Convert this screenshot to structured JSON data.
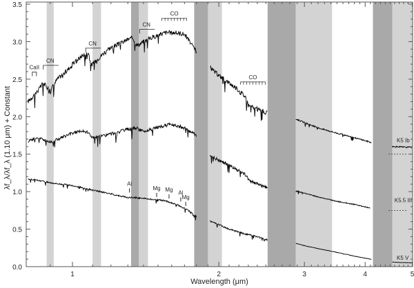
{
  "chart_data": {
    "type": "line",
    "title": "",
    "xlabel": "Wavelength (μm)",
    "ylabel": "λf_λ/λf_λ (1.10 μm) + Constant",
    "xscale": "log",
    "xlim": [
      0.8,
      5.0
    ],
    "ylim": [
      0.0,
      3.5
    ],
    "x_ticks": [
      {
        "value": 1,
        "label": "1"
      },
      {
        "value": 2,
        "label": "2"
      },
      {
        "value": 3,
        "label": "3"
      },
      {
        "value": 4,
        "label": "4"
      },
      {
        "value": 5,
        "label": "5"
      }
    ],
    "y_ticks": [
      {
        "value": 0.0,
        "label": "0.0"
      },
      {
        "value": 0.5,
        "label": "0.5"
      },
      {
        "value": 1.0,
        "label": "1.0"
      },
      {
        "value": 1.5,
        "label": "1.5"
      },
      {
        "value": 2.0,
        "label": "2.0"
      },
      {
        "value": 2.5,
        "label": "2.5"
      },
      {
        "value": 3.0,
        "label": "3.0"
      },
      {
        "value": 3.5,
        "label": "3.5"
      }
    ],
    "grid": false,
    "shaded_bands": [
      {
        "x0": 0.885,
        "x1": 0.915,
        "shade": "light"
      },
      {
        "x0": 1.1,
        "x1": 1.145,
        "shade": "light"
      },
      {
        "x0": 1.32,
        "x1": 1.37,
        "shade": "dark"
      },
      {
        "x0": 1.37,
        "x1": 1.43,
        "shade": "light"
      },
      {
        "x0": 1.78,
        "x1": 1.9,
        "shade": "dark"
      },
      {
        "x0": 1.9,
        "x1": 2.03,
        "shade": "light"
      },
      {
        "x0": 2.52,
        "x1": 2.88,
        "shade": "dark"
      },
      {
        "x0": 2.88,
        "x1": 3.42,
        "shade": "light"
      },
      {
        "x0": 4.15,
        "x1": 4.55,
        "shade": "dark"
      },
      {
        "x0": 4.55,
        "x1": 5.0,
        "shade": "light"
      }
    ],
    "series": [
      {
        "name": "K5 Ib",
        "offset_label_y": 1.5,
        "x": [
          0.81,
          0.85,
          0.87,
          0.9,
          0.93,
          0.97,
          1.0,
          1.05,
          1.08,
          1.09,
          1.12,
          1.18,
          1.25,
          1.3,
          1.33,
          1.36,
          1.4,
          1.45,
          1.55,
          1.62,
          1.7,
          1.75,
          1.78,
          1.94,
          2.0,
          2.1,
          2.2,
          2.28,
          2.3,
          2.4,
          2.5,
          2.88,
          3.0,
          3.2,
          3.5,
          3.8,
          4.1,
          4.55,
          5.0
        ],
        "y": [
          2.2,
          2.35,
          2.45,
          2.35,
          2.5,
          2.6,
          2.7,
          2.82,
          2.85,
          2.68,
          2.75,
          2.9,
          2.97,
          3.03,
          3.05,
          2.95,
          3.0,
          3.05,
          3.12,
          3.12,
          3.1,
          2.98,
          2.9,
          2.62,
          2.55,
          2.45,
          2.35,
          2.25,
          2.15,
          2.1,
          2.05,
          1.97,
          1.92,
          1.85,
          1.78,
          1.72,
          1.66,
          1.6,
          1.59
        ]
      },
      {
        "name": "K5.5 III",
        "offset_label_y": 0.75,
        "x": [
          0.81,
          0.85,
          0.9,
          0.95,
          1.0,
          1.05,
          1.08,
          1.1,
          1.15,
          1.2,
          1.3,
          1.35,
          1.4,
          1.5,
          1.6,
          1.7,
          1.78,
          1.92,
          2.0,
          2.1,
          2.2,
          2.28,
          2.3,
          2.4,
          2.5,
          2.88,
          3.0,
          3.2,
          3.5,
          3.8,
          4.1
        ],
        "y": [
          1.68,
          1.72,
          1.66,
          1.72,
          1.78,
          1.82,
          1.78,
          1.72,
          1.74,
          1.77,
          1.83,
          1.85,
          1.8,
          1.86,
          1.9,
          1.85,
          1.77,
          1.48,
          1.42,
          1.35,
          1.28,
          1.22,
          1.15,
          1.1,
          1.06,
          1.01,
          0.98,
          0.93,
          0.87,
          0.83,
          0.78
        ]
      },
      {
        "name": "K5 V",
        "offset_label_y": 0.0,
        "x": [
          0.81,
          0.85,
          0.9,
          0.95,
          1.0,
          1.1,
          1.2,
          1.3,
          1.35,
          1.45,
          1.55,
          1.65,
          1.75,
          1.78,
          1.9,
          2.0,
          2.1,
          2.25,
          2.4,
          2.5,
          2.88,
          3.0,
          3.2,
          3.5,
          3.8,
          4.1,
          4.55,
          5.0
        ],
        "y": [
          1.17,
          1.15,
          1.12,
          1.1,
          1.08,
          1.02,
          0.97,
          0.92,
          0.92,
          0.9,
          0.88,
          0.82,
          0.73,
          0.68,
          0.62,
          0.56,
          0.5,
          0.44,
          0.4,
          0.36,
          0.31,
          0.28,
          0.24,
          0.19,
          0.14,
          0.1,
          0.06,
          0.05
        ]
      }
    ],
    "annotations": [
      {
        "text": "CaII",
        "x": 0.835,
        "y": 2.63,
        "marker": "bracket"
      },
      {
        "text": "CN",
        "x": 0.9,
        "y": 2.72,
        "marker": "bandhead"
      },
      {
        "text": "CN",
        "x": 1.1,
        "y": 2.95,
        "marker": "bandhead"
      },
      {
        "text": "CN",
        "x": 1.42,
        "y": 3.2,
        "marker": "bandhead"
      },
      {
        "text": "CO",
        "x": 1.62,
        "y": 3.35,
        "marker": "comb"
      },
      {
        "text": "CO",
        "x": 2.35,
        "y": 2.5,
        "marker": "comb"
      },
      {
        "text": "Al",
        "x": 1.31,
        "y": 1.08,
        "marker": "tick"
      },
      {
        "text": "Mg",
        "x": 1.49,
        "y": 1.02,
        "marker": "tick"
      },
      {
        "text": "Mg",
        "x": 1.58,
        "y": 1.0,
        "marker": "tick"
      },
      {
        "text": "Al",
        "x": 1.67,
        "y": 0.96,
        "marker": "tick"
      },
      {
        "text": "Mg",
        "x": 1.71,
        "y": 0.9,
        "marker": "tick"
      },
      {
        "text": "K5 Ib",
        "x": 4.8,
        "y": 1.66,
        "marker": "label"
      },
      {
        "text": "K5.5 III",
        "x": 4.75,
        "y": 0.86,
        "marker": "label"
      },
      {
        "text": "K5 V",
        "x": 4.8,
        "y": 0.09,
        "marker": "label"
      }
    ],
    "colors": {
      "line": "#000000",
      "band_light": "#d3d3d3",
      "band_dark": "#a9a9a9",
      "frame": "#555555"
    }
  }
}
